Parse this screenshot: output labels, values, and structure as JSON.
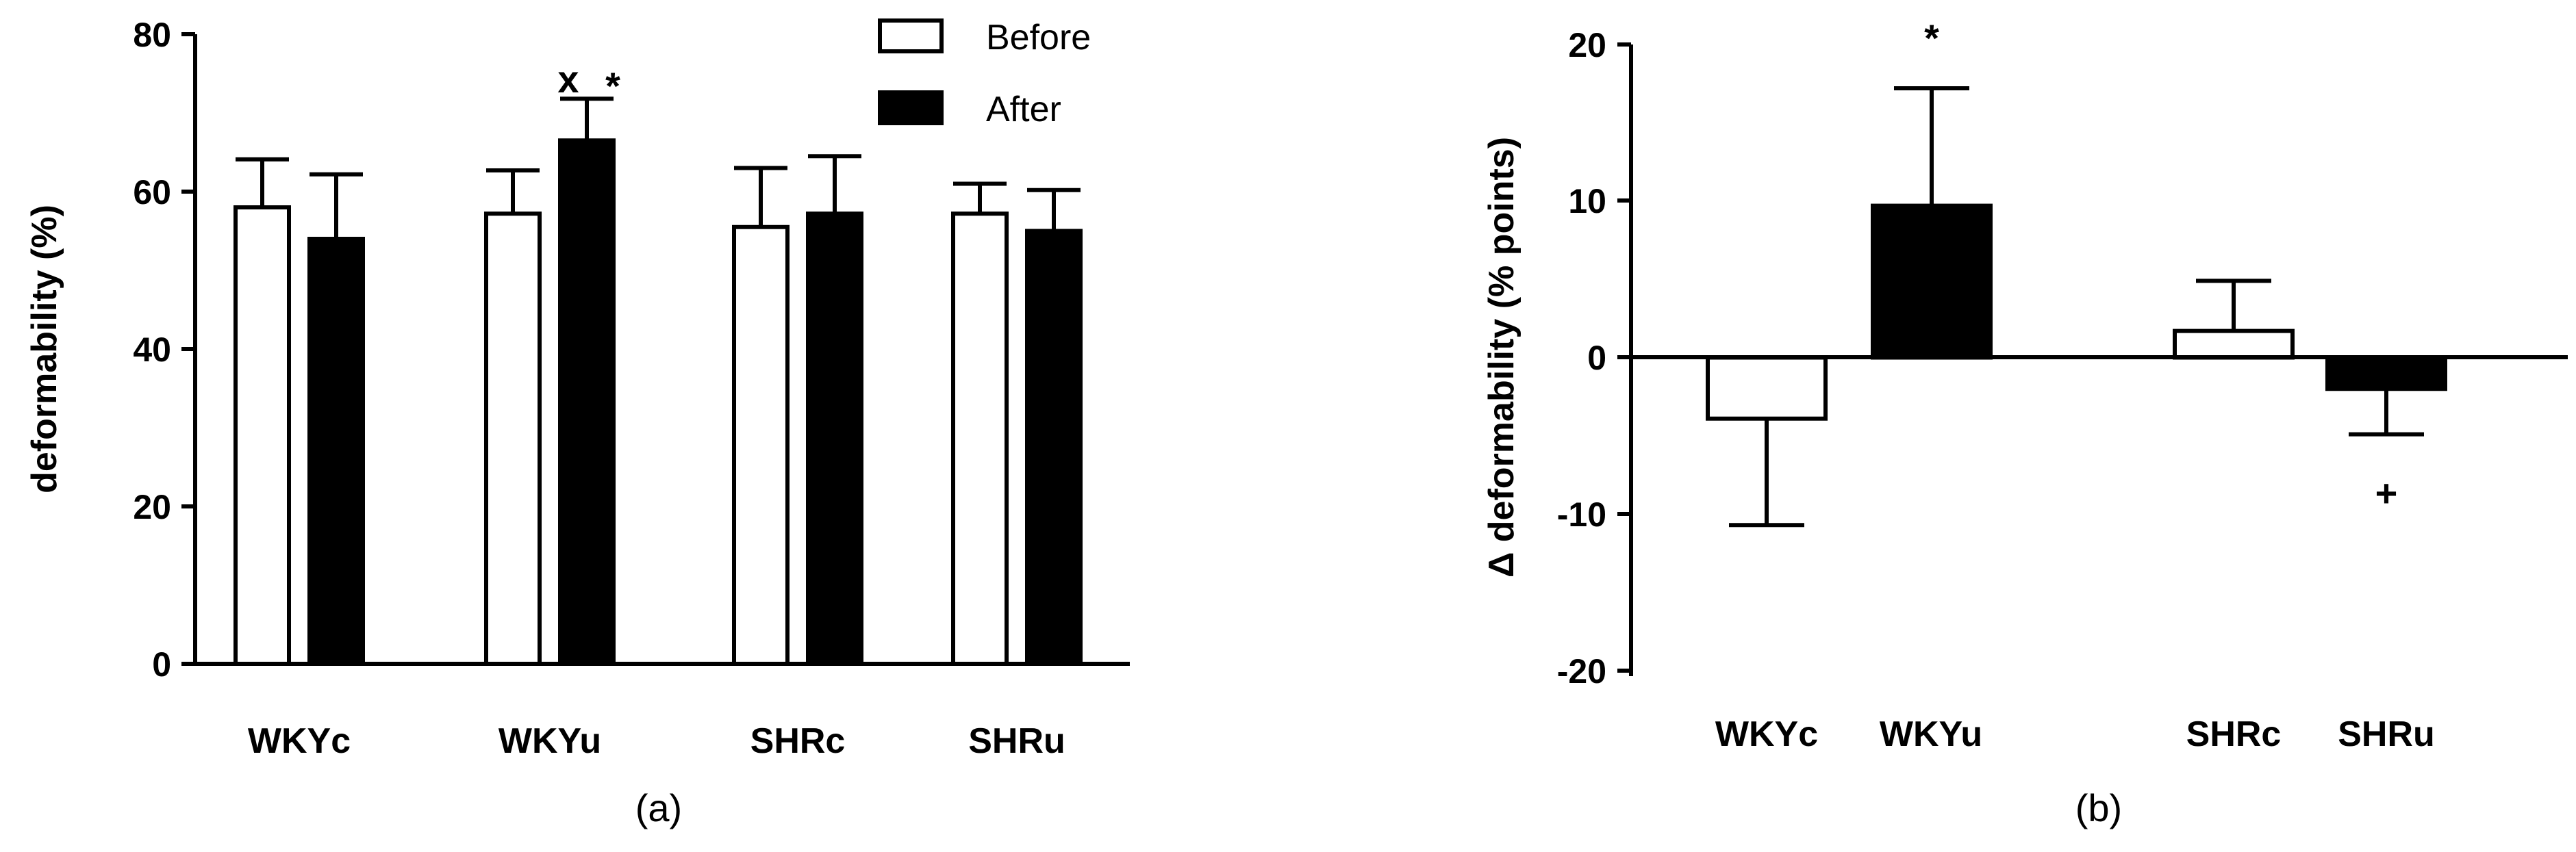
{
  "chart_data": [
    {
      "type": "bar",
      "caption": "(a)",
      "ylabel": "deformability (%)",
      "ylim": [
        0,
        80
      ],
      "yticks": [
        "0",
        "20",
        "40",
        "60",
        "80"
      ],
      "categories": [
        "WKYc",
        "WKYu",
        "SHRc",
        "SHRu"
      ],
      "series": [
        {
          "name": "Before",
          "fill": "white",
          "values": [
            58,
            57.2,
            55.5,
            57.2
          ],
          "errors": [
            6.1,
            5.5,
            7.5,
            3.8
          ]
        },
        {
          "name": "After",
          "fill": "black",
          "values": [
            54,
            66.5,
            57.2,
            55
          ],
          "errors": [
            8.2,
            5.3,
            7.3,
            5.2
          ]
        }
      ],
      "legend": "top-right",
      "annotations": [
        {
          "text": "x",
          "category": "WKYu"
        },
        {
          "text": "*",
          "category": "WKYu"
        }
      ]
    },
    {
      "type": "bar",
      "caption": "(b)",
      "ylabel": "Δ deformability (% points)",
      "ylim": [
        -20,
        20
      ],
      "yticks": [
        "20",
        "10",
        "0",
        "-10",
        "-20"
      ],
      "categories": [
        "WKYc",
        "WKYu",
        "SHRc",
        "SHRu"
      ],
      "values": [
        -3.9,
        9.7,
        1.7,
        -2
      ],
      "errors": [
        6.8,
        7.5,
        3.2,
        2.9
      ],
      "fills": [
        "white",
        "black",
        "white",
        "black"
      ],
      "annotations": [
        {
          "text": "*",
          "category": "WKYu"
        },
        {
          "text": "+",
          "category": "SHRu"
        }
      ]
    }
  ]
}
